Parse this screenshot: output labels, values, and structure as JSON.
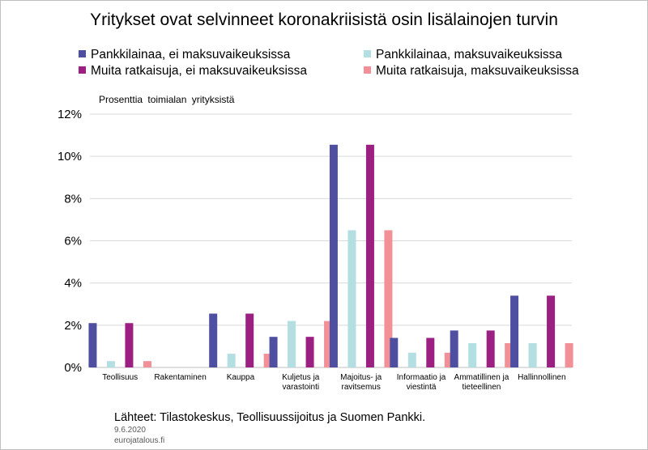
{
  "chart_data": {
    "type": "bar",
    "title": "Yritykset ovat selvinneet koronakriisistä osin lisälainojen turvin",
    "ylabel": "Prosenttia  toimialan  yrityksistä",
    "xlabel": "",
    "ylim": [
      0,
      12
    ],
    "yticks": [
      "0%",
      "2%",
      "4%",
      "6%",
      "8%",
      "10%",
      "12%"
    ],
    "grid": true,
    "legend_position": "top",
    "categories": [
      [
        "Teollisuus"
      ],
      [
        "Rakentaminen"
      ],
      [
        "Kauppa"
      ],
      [
        "Kuljetus ja",
        "varastointi"
      ],
      [
        "Majoitus- ja",
        "ravitsemus"
      ],
      [
        "Informaatio ja",
        "viestintä"
      ],
      [
        "Ammatillinen ja",
        "tieteellinen"
      ],
      [
        "Hallinnollinen"
      ]
    ],
    "series": [
      {
        "name": "Pankkilainaa, ei maksuvaikeuksissa",
        "color": "#4f4fa2",
        "values": [
          2.1,
          0,
          2.55,
          1.45,
          10.55,
          1.4,
          1.75,
          3.4
        ]
      },
      {
        "name": "Pankkilainaa, maksuvaikeuksissa",
        "color": "#b3dfe2",
        "values": [
          0.3,
          0,
          0.65,
          2.2,
          6.5,
          0.7,
          1.15,
          1.15
        ]
      },
      {
        "name": "Muita ratkaisuja, ei maksuvaikeuksissa",
        "color": "#9c1f82",
        "values": [
          2.1,
          0,
          2.55,
          1.45,
          10.55,
          1.4,
          1.75,
          3.4
        ]
      },
      {
        "name": "Muita ratkaisuja, maksuvaikeuksissa",
        "color": "#f19097",
        "values": [
          0.3,
          0,
          0.65,
          2.2,
          6.5,
          0.7,
          1.15,
          1.15
        ]
      }
    ]
  },
  "footer": {
    "source": "Lähteet: Tilastokeskus, Teollisuussijoitus  ja Suomen Pankki.",
    "date": "9.6.2020",
    "site": "eurojatalous.fi"
  }
}
